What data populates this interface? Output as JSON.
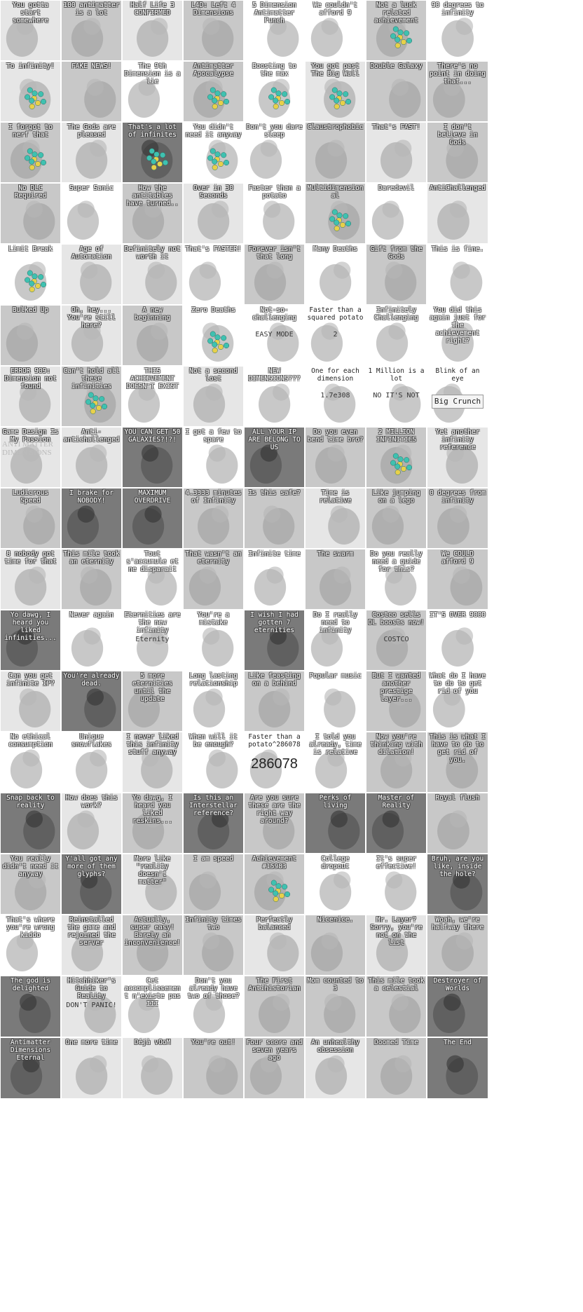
{
  "grid": {
    "columns": 8,
    "rows": 18,
    "achievements": [
      "You gotta start somewhere",
      "100 antimatter is a lot",
      "Half Life 3 CONFIRMED",
      "L4D: Left 4 Dimensions",
      "5 Dimension Antimatter Punch",
      "We couldn't afford 9",
      "Not a luck related achievement",
      "90 degrees to infinity",
      "To infinity!",
      "FAKE NEWS!",
      "The 9th Dimension is a lie",
      "Antimatter Apocalypse",
      "Boosting to the max",
      "You got past The Big Wall",
      "Double Galaxy",
      "There's no point in doing that...",
      "I forgot to nerf that",
      "The Gods are pleased",
      "That's a lot of infinites",
      "You didn't need it anyway",
      "Don't you dare sleep",
      "Claustrophobic",
      "That's FAST!",
      "I don't believe in Gods",
      "No DLC Required",
      "Super Sanic",
      "How the antitables have turned..",
      "Over in 30 Seconds",
      "Faster than a potato",
      "Multidimensional",
      "Daredevil",
      "AntiChallenged",
      "Limit Break",
      "Age of Automation",
      "Definitely not worth it",
      "That's FASTER!",
      "Forever isn't that long",
      "Many Deaths",
      "Gift from the Gods",
      "This is fine.",
      "Bulked Up",
      "Oh, hey... You're still here?",
      "A new beginning",
      "Zero Deaths",
      "Not-so-challenging",
      "Faster than a squared potato",
      "Infinitely Challenging",
      "You did this again just for the achievement right?",
      "ERROR 909: Dimension not found",
      "Can't hold all these infinities",
      "THIS ACHIEVEMENT DOESN'T EXIST",
      "Not a second lost",
      "NEW DIMENSIONS???",
      "One for each dimension",
      "1 Million is a lot",
      "Blink of an eye",
      "Game Design Is My Passion",
      "Anti-antichallenged",
      "YOU CAN GET 50 GALAXIES?!?!",
      "I got a few to spare",
      "ALL YOUR IP ARE BELONG TO US",
      "Do you even bend time bro?",
      "2 MILLION INFINITIES",
      "Yet another infinity reference",
      "Ludicrous Speed",
      "I brake for NOBODY!",
      "MAXIMUM OVERDRIVE",
      "4.3333 minutes of Infinity",
      "Is this safe?",
      "Time is relative",
      "Like jumping on a lego",
      "0 degrees from infinity",
      "8 nobody got time for that",
      "This mile took an eternity",
      "Tout s'accumule et ne disparait",
      "That wasn't an eternity",
      "Infinite time",
      "The swarm",
      "Do you really need a guide for this?",
      "We COULD afford 9",
      "Yo dawg, I heard you liked infinities...",
      "Never again",
      "Eternities are the new infinity",
      "You're a mistake",
      "I wish I had gotten 7 eternities",
      "Do I really need to infinity",
      "Costco sells DL boosts now!",
      "IT'S OVER 9000",
      "Can you get infinite IP?",
      "You're already dead.",
      "5 more eternities until the update",
      "Long lasting relationship",
      "Like feasting on a behind",
      "Popular music",
      "But I wanted another prestige layer...",
      "What do I have to do to get rid of you",
      "No ethical consumption",
      "Unique snowflakes",
      "I never liked this infinity stuff anyway",
      "When will it be enough?",
      "Faster than a potato^286078",
      "I told you already, time is relative",
      "Now you're thinking with dilation!",
      "This is what I have to do to get rid of you.",
      "Snap back to reality",
      "How does this work?",
      "Yo dawg, I heard you liked reskins...",
      "Is this an Interstellar reference?",
      "Are you sure these are the right way around?",
      "Perks of living",
      "Master of Reality",
      "Royal flush",
      "You really didn't need it anyway",
      "Y'all got any more of them glyphs?",
      "More like \"reality doesn't matter\"",
      "I am speed",
      "Achievement #15983",
      "College dropout",
      "It's super effective!",
      "Bruh, are you like, inside the hole?",
      "That's where you're wrong kiddo",
      "Reinstalled the game and rejoined the server",
      "Actually, super easy! Barely an inconvenience!",
      "Infinity times two",
      "Perfectly balanced",
      "Nicenice.",
      "Mr. Layer? Sorry, you're not on the list",
      "Woah, we're halfway there",
      "The god is delighted",
      "Hitchhiker's Guide to Reality",
      "Cet accomplissement n'existe pas III",
      "Don't you already have two of those?",
      "The First Antihistorian",
      "Mom counted to 3",
      "This mile took a celestial",
      "Destroyer of Worlds",
      "Antimatter Dimensions Eternal",
      "One more time",
      "Déjà vOoM",
      "You're out!",
      "Four score and seven years ago",
      "An unhealthy obsession",
      "Doomed Time",
      "The End"
    ],
    "extras": {
      "blink_button": "Big Crunch",
      "potato_number": "286078",
      "ad_text": "ANTI MATTER DIMEN SIONS",
      "one_each_value": "1.7e308",
      "costco_text": "COSTCO",
      "easy_mode": "EASY MODE",
      "not_exist_text": "NO IT'S NOT",
      "exponent_2": "2",
      "eternity_label": "Eternity",
      "dont_panic": "DON'T PANIC!"
    },
    "colors": {
      "tile_bg_light": "#e6e6e6",
      "tile_bg_mid": "#c8c8c8",
      "tile_bg_dark": "#7a7a7a",
      "cluster_teal": "#3fc1b0",
      "cluster_yellow": "#e8d04a",
      "accent_red": "#e03b3b"
    }
  }
}
